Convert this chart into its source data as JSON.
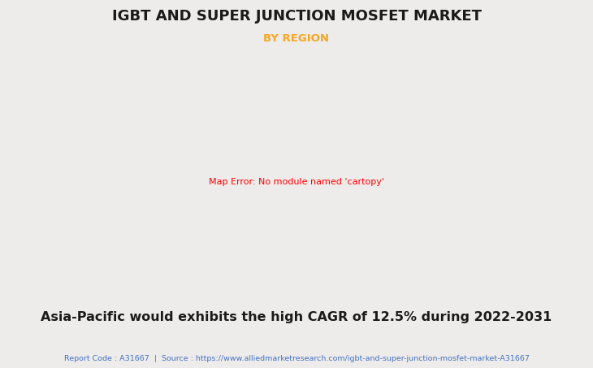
{
  "title": "IGBT AND SUPER JUNCTION MOSFET MARKET",
  "subtitle": "BY REGION",
  "subtitle_color": "#f5a623",
  "title_color": "#1a1a1a",
  "background_color": "#eeecea",
  "map_land_color": "#90be90",
  "map_na_highlight": "#f0f0f0",
  "map_border_color": "#7aaad0",
  "shadow_color": "#999999",
  "shadow_alpha": 0.45,
  "annotation_text": "Asia-Pacific would exhibits the high CAGR of 12.5% during 2022-2031",
  "annotation_color": "#1a1a1a",
  "footer_text": "Report Code : A31667  |  Source : https://www.alliedmarketresearch.com/igbt-and-super-junction-mosfet-market-A31667",
  "footer_color": "#4472c4",
  "title_fontsize": 13,
  "subtitle_fontsize": 9.5,
  "annotation_fontsize": 11.5,
  "footer_fontsize": 6.8,
  "divider_color": "#cccccc"
}
